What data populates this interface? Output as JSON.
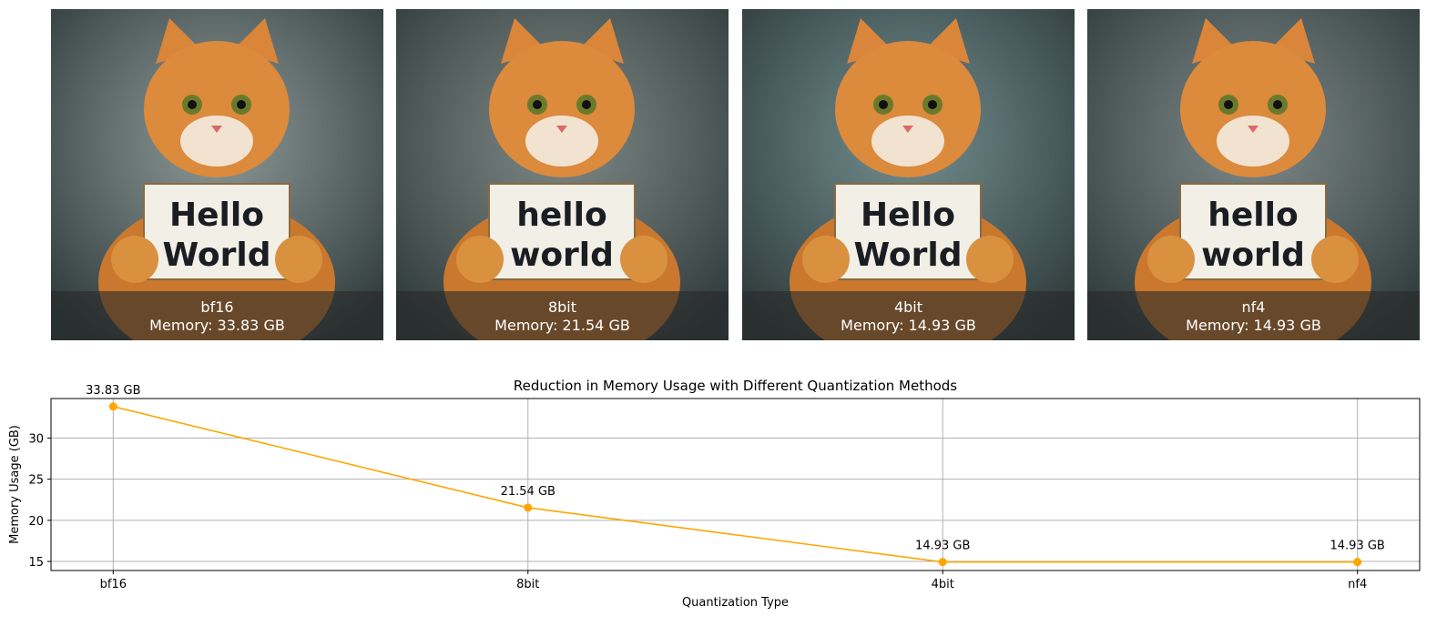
{
  "panels": [
    {
      "label": "bf16",
      "memory": "Memory: 33.83 GB",
      "sign": [
        "Hello",
        "World"
      ],
      "bg": "#6f7f7d"
    },
    {
      "label": "8bit",
      "memory": "Memory: 21.54 GB",
      "sign": [
        "hello",
        "world"
      ],
      "bg": "#5e6b68"
    },
    {
      "label": "4bit",
      "memory": "Memory: 14.93 GB",
      "sign": [
        "Hello",
        "World"
      ],
      "bg": "#4f7072"
    },
    {
      "label": "nf4",
      "memory": "Memory: 14.93 GB",
      "sign": [
        "hello",
        "world"
      ],
      "bg": "#5d6a6a"
    }
  ],
  "chart_data": {
    "type": "line",
    "title": "Reduction in Memory Usage with Different Quantization Methods",
    "xlabel": "Quantization Type",
    "ylabel": "Memory Usage (GB)",
    "categories": [
      "bf16",
      "8bit",
      "4bit",
      "nf4"
    ],
    "values": [
      33.83,
      21.54,
      14.93,
      14.93
    ],
    "data_labels": [
      "33.83 GB",
      "21.54 GB",
      "14.93 GB",
      "14.93 GB"
    ],
    "yticks": [
      15,
      20,
      25,
      30
    ],
    "ylim": [
      13.9,
      34.8
    ],
    "grid": true,
    "marker": "circle",
    "color": "#ffa500"
  }
}
